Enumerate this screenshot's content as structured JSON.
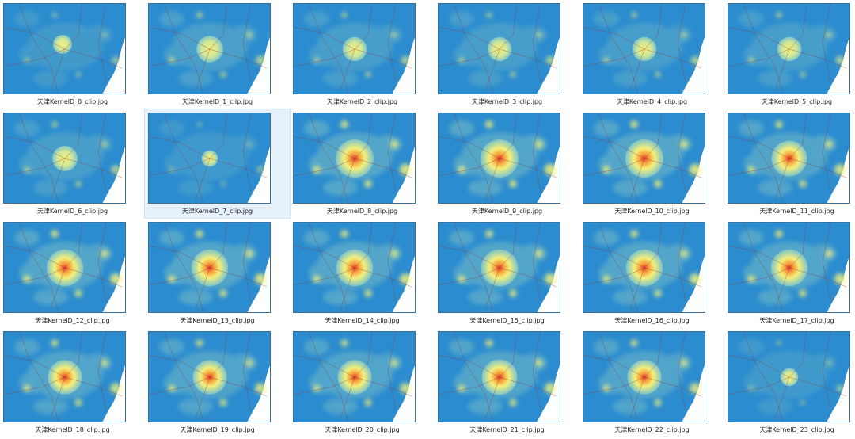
{
  "files": [
    {
      "name": "天津KernelD_0_clip.jpg",
      "intensity": 0.25,
      "hot": "yellow"
    },
    {
      "name": "天津KernelD_1_clip.jpg",
      "intensity": 0.55,
      "hot": "yellow"
    },
    {
      "name": "天津KernelD_2_clip.jpg",
      "intensity": 0.45,
      "hot": "yellow"
    },
    {
      "name": "天津KernelD_3_clip.jpg",
      "intensity": 0.45,
      "hot": "yellow"
    },
    {
      "name": "天津KernelD_4_clip.jpg",
      "intensity": 0.45,
      "hot": "yellow"
    },
    {
      "name": "天津KernelD_5_clip.jpg",
      "intensity": 0.45,
      "hot": "yellow"
    },
    {
      "name": "天津KernelD_6_clip.jpg",
      "intensity": 0.5,
      "hot": "yellow"
    },
    {
      "name": "天津KernelD_7_clip.jpg",
      "intensity": 0.15,
      "hot": "yellow",
      "selected": true
    },
    {
      "name": "天津KernelD_8_clip.jpg",
      "intensity": 1.0,
      "hot": "red"
    },
    {
      "name": "天津KernelD_9_clip.jpg",
      "intensity": 1.0,
      "hot": "red"
    },
    {
      "name": "天津KernelD_10_clip.jpg",
      "intensity": 1.0,
      "hot": "red"
    },
    {
      "name": "天津KernelD_11_clip.jpg",
      "intensity": 0.9,
      "hot": "red"
    },
    {
      "name": "天津KernelD_12_clip.jpg",
      "intensity": 0.95,
      "hot": "red"
    },
    {
      "name": "天津KernelD_13_clip.jpg",
      "intensity": 0.95,
      "hot": "red"
    },
    {
      "name": "天津KernelD_14_clip.jpg",
      "intensity": 0.95,
      "hot": "red"
    },
    {
      "name": "天津KernelD_15_clip.jpg",
      "intensity": 0.95,
      "hot": "red"
    },
    {
      "name": "天津KernelD_16_clip.jpg",
      "intensity": 0.95,
      "hot": "red"
    },
    {
      "name": "天津KernelD_17_clip.jpg",
      "intensity": 0.95,
      "hot": "red"
    },
    {
      "name": "天津KernelD_18_clip.jpg",
      "intensity": 0.85,
      "hot": "red"
    },
    {
      "name": "天津KernelD_19_clip.jpg",
      "intensity": 0.85,
      "hot": "red"
    },
    {
      "name": "天津KernelD_20_clip.jpg",
      "intensity": 0.85,
      "hot": "red"
    },
    {
      "name": "天津KernelD_21_clip.jpg",
      "intensity": 0.9,
      "hot": "red"
    },
    {
      "name": "天津KernelD_22_clip.jpg",
      "intensity": 0.85,
      "hot": "red"
    },
    {
      "name": "天津KernelD_23_clip.jpg",
      "intensity": 0.2,
      "hot": "yellow"
    }
  ],
  "colors": {
    "base": "#2b8ccf",
    "ramp_blue": "#7ec3c8",
    "ramp_yellow": "#f3f07a",
    "ramp_orange": "#f7a23d",
    "ramp_red": "#e8322b",
    "road": "#8a3d3d",
    "coast": "#ffffff",
    "selection": "#e5f1fb"
  }
}
